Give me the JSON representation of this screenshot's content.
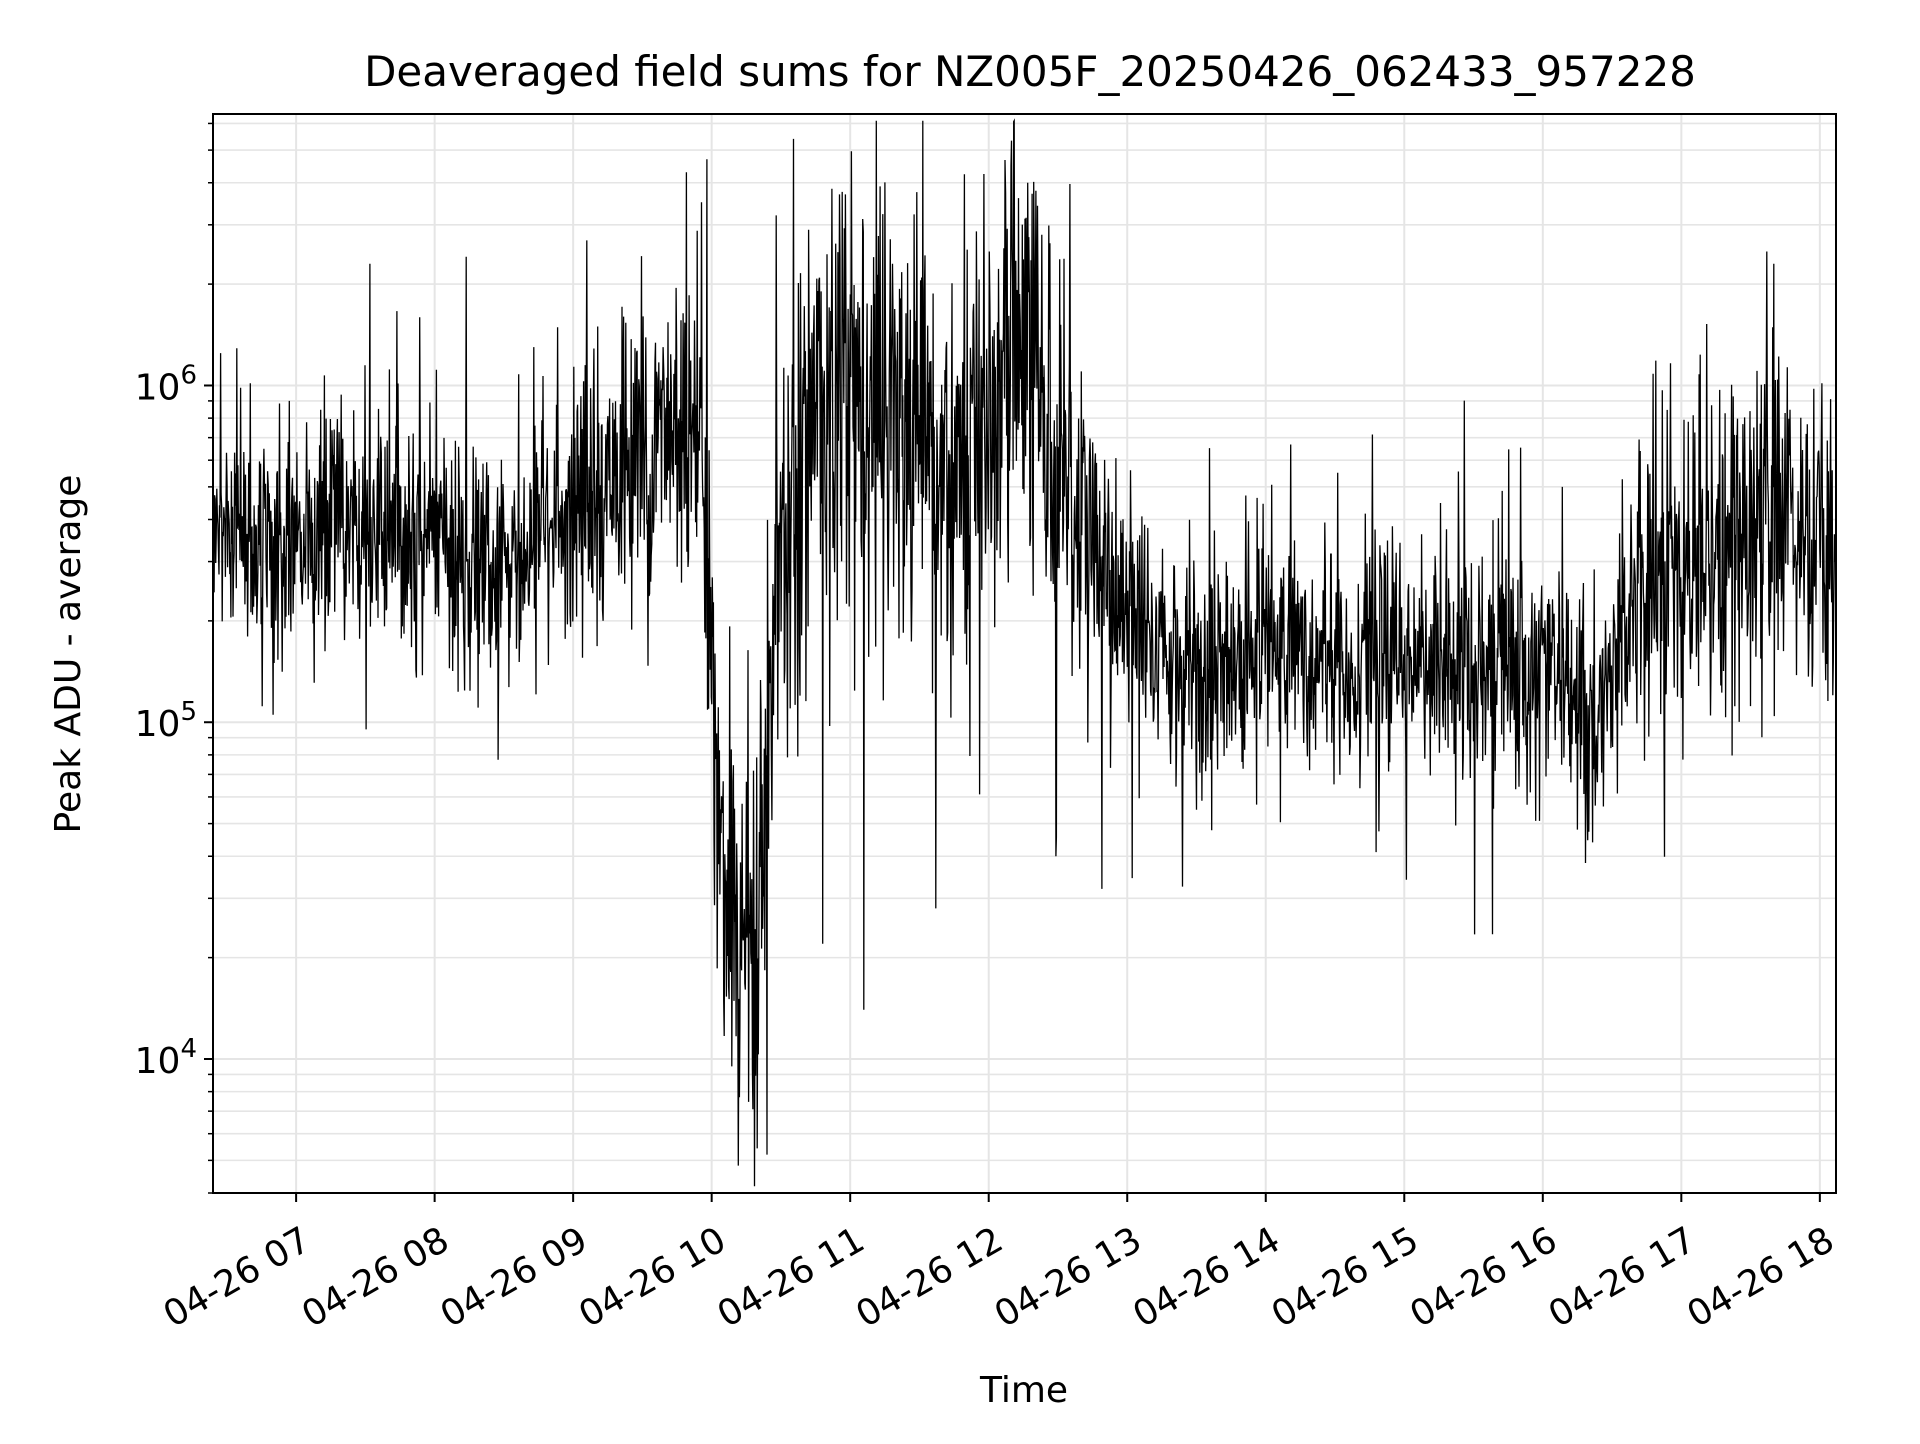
{
  "chart_data": {
    "type": "line",
    "title": "Deaveraged field sums for NZ005F_20250426_062433_957228",
    "xlabel": "Time",
    "ylabel": "Peak ADU - average",
    "yscale": "log",
    "grid": true,
    "line_color": "#000000",
    "grid_color": "#e5e5e5",
    "xlim": [
      "2025-04-26 06:24",
      "2025-04-26 18:07"
    ],
    "ylim": [
      4000,
      6400000
    ],
    "x_ticks": [
      {
        "time": "2025-04-26 07:00",
        "label": "04-26 07"
      },
      {
        "time": "2025-04-26 08:00",
        "label": "04-26 08"
      },
      {
        "time": "2025-04-26 09:00",
        "label": "04-26 09"
      },
      {
        "time": "2025-04-26 10:00",
        "label": "04-26 10"
      },
      {
        "time": "2025-04-26 11:00",
        "label": "04-26 11"
      },
      {
        "time": "2025-04-26 12:00",
        "label": "04-26 12"
      },
      {
        "time": "2025-04-26 13:00",
        "label": "04-26 13"
      },
      {
        "time": "2025-04-26 14:00",
        "label": "04-26 14"
      },
      {
        "time": "2025-04-26 15:00",
        "label": "04-26 15"
      },
      {
        "time": "2025-04-26 16:00",
        "label": "04-26 16"
      },
      {
        "time": "2025-04-26 17:00",
        "label": "04-26 17"
      },
      {
        "time": "2025-04-26 18:00",
        "label": "04-26 18"
      }
    ],
    "y_ticks": [
      {
        "value": 10000,
        "base": "10",
        "exp": "4"
      },
      {
        "value": 100000,
        "base": "10",
        "exp": "5"
      },
      {
        "value": 1000000,
        "base": "10",
        "exp": "6"
      }
    ],
    "series_profile": [
      {
        "time": "2025-04-26 06:24",
        "y": 400000
      },
      {
        "time": "2025-04-26 07:00",
        "y": 330000
      },
      {
        "time": "2025-04-26 07:30",
        "y": 400000
      },
      {
        "time": "2025-04-26 08:00",
        "y": 360000
      },
      {
        "time": "2025-04-26 08:30",
        "y": 250000
      },
      {
        "time": "2025-04-26 09:00",
        "y": 450000
      },
      {
        "time": "2025-04-26 09:30",
        "y": 600000
      },
      {
        "time": "2025-04-26 09:55",
        "y": 900000
      },
      {
        "time": "2025-04-26 10:05",
        "y": 30000
      },
      {
        "time": "2025-04-26 10:20",
        "y": 25000
      },
      {
        "time": "2025-04-26 10:30",
        "y": 400000
      },
      {
        "time": "2025-04-26 10:50",
        "y": 1000000
      },
      {
        "time": "2025-04-26 11:10",
        "y": 800000
      },
      {
        "time": "2025-04-26 11:40",
        "y": 500000
      },
      {
        "time": "2025-04-26 12:15",
        "y": 1200000
      },
      {
        "time": "2025-04-26 12:35",
        "y": 600000
      },
      {
        "time": "2025-04-26 12:50",
        "y": 250000
      },
      {
        "time": "2025-04-26 13:30",
        "y": 140000
      },
      {
        "time": "2025-04-26 14:00",
        "y": 170000
      },
      {
        "time": "2025-04-26 15:00",
        "y": 150000
      },
      {
        "time": "2025-04-26 16:00",
        "y": 150000
      },
      {
        "time": "2025-04-26 16:20",
        "y": 100000
      },
      {
        "time": "2025-04-26 16:45",
        "y": 280000
      },
      {
        "time": "2025-04-26 17:15",
        "y": 330000
      },
      {
        "time": "2025-04-26 17:45",
        "y": 450000
      },
      {
        "time": "2025-04-26 18:07",
        "y": 300000
      }
    ],
    "notable_points": [
      {
        "time": "2025-04-26 06:57",
        "y": 900000
      },
      {
        "time": "2025-04-26 07:32",
        "y": 2300000
      },
      {
        "time": "2025-04-26 08:43",
        "y": 1300000
      },
      {
        "time": "2025-04-26 09:49",
        "y": 4300000
      },
      {
        "time": "2025-04-26 09:58",
        "y": 4700000
      },
      {
        "time": "2025-04-26 10:12",
        "y": 7700
      },
      {
        "time": "2025-04-26 10:24",
        "y": 5200
      },
      {
        "time": "2025-04-26 10:28",
        "y": 3200000
      },
      {
        "time": "2025-04-26 10:42",
        "y": 2900000
      },
      {
        "time": "2025-04-26 10:48",
        "y": 22000
      },
      {
        "time": "2025-04-26 11:06",
        "y": 14000
      },
      {
        "time": "2025-04-26 11:13",
        "y": 3900000
      },
      {
        "time": "2025-04-26 11:37",
        "y": 28000
      },
      {
        "time": "2025-04-26 12:13",
        "y": 3600000
      },
      {
        "time": "2025-04-26 12:17",
        "y": 4000000
      },
      {
        "time": "2025-04-26 12:29",
        "y": 40000
      },
      {
        "time": "2025-04-26 12:49",
        "y": 32000
      },
      {
        "time": "2025-04-26 13:30",
        "y": 55000
      },
      {
        "time": "2025-04-26 16:15",
        "y": 48000
      },
      {
        "time": "2025-04-26 17:37",
        "y": 2500000
      },
      {
        "time": "2025-04-26 17:40",
        "y": 2300000
      },
      {
        "time": "2025-04-26 18:07",
        "y": 100000
      }
    ]
  }
}
